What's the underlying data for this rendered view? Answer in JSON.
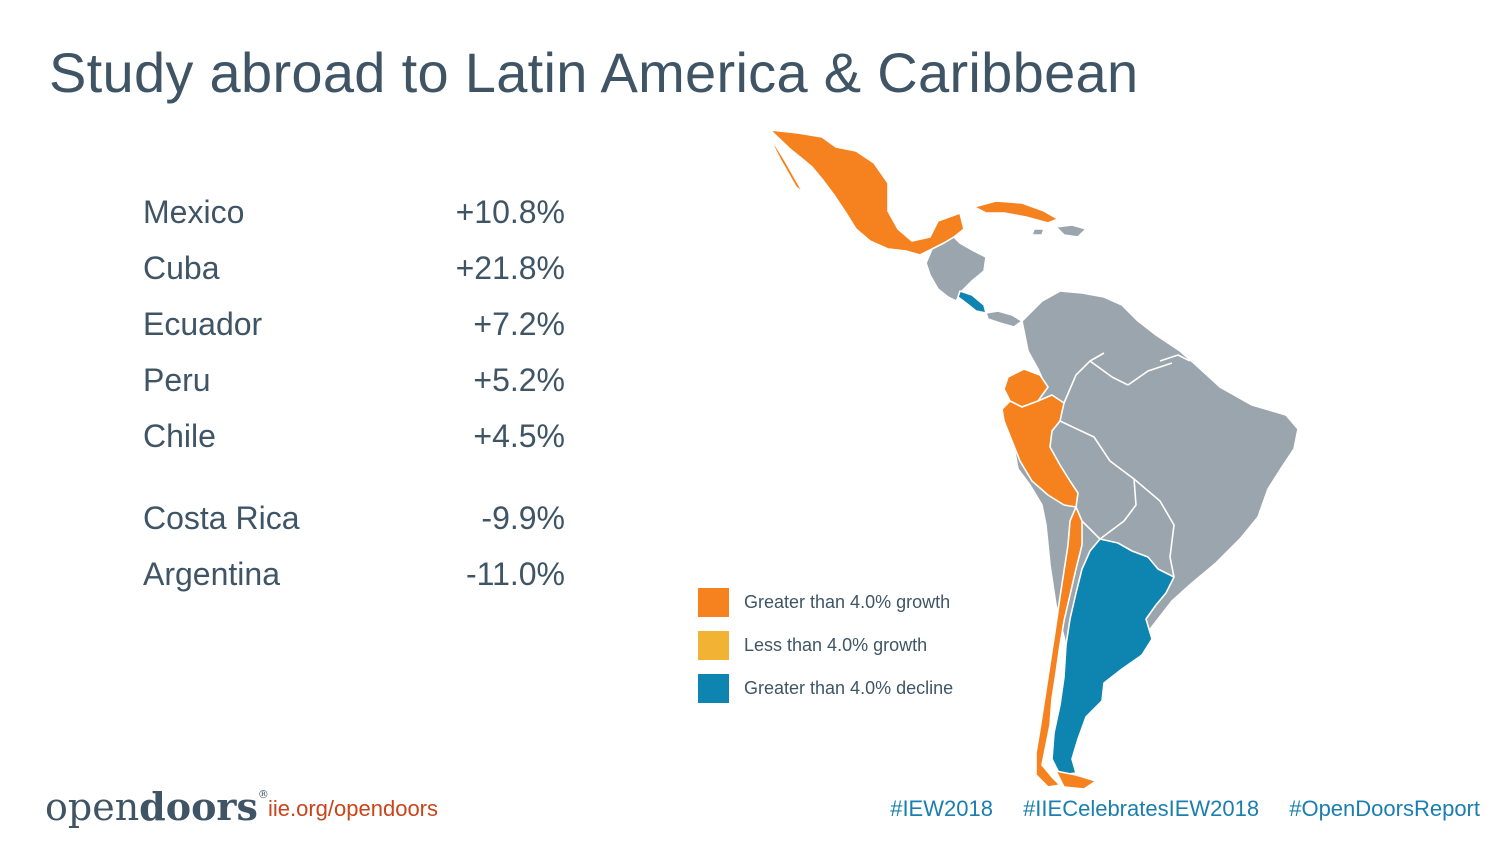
{
  "title": "Study abroad to Latin America & Caribbean",
  "stats": [
    {
      "country": "Mexico",
      "change": "+10.8%"
    },
    {
      "country": "Cuba",
      "change": "+21.8%"
    },
    {
      "country": "Ecuador",
      "change": "+7.2%"
    },
    {
      "country": "Peru",
      "change": "+5.2%"
    },
    {
      "country": "Chile",
      "change": "+4.5%"
    },
    {
      "country": "Costa Rica",
      "change": "-9.9%"
    },
    {
      "country": "Argentina",
      "change": "-11.0%"
    }
  ],
  "colors": {
    "high_growth": "#f5821f",
    "low_growth": "#f2b233",
    "decline": "#0e84b0",
    "no_data": "#9ba5ad",
    "text": "#3f5566",
    "link": "#c9441a",
    "hashtag": "#1a7fb0"
  },
  "legend": [
    {
      "label": "Greater than 4.0% growth",
      "color": "#f5821f"
    },
    {
      "label": "Less than 4.0% growth",
      "color": "#f2b233"
    },
    {
      "label": "Greater than 4.0% decline",
      "color": "#0e84b0"
    }
  ],
  "footer": {
    "logo_light": "open",
    "logo_bold": "doors",
    "logo_mark": "®",
    "link": "iie.org/opendoors",
    "hashtags": [
      "#IEW2018",
      "#IIECelebratesIEW2018",
      "#OpenDoorsReport"
    ]
  }
}
